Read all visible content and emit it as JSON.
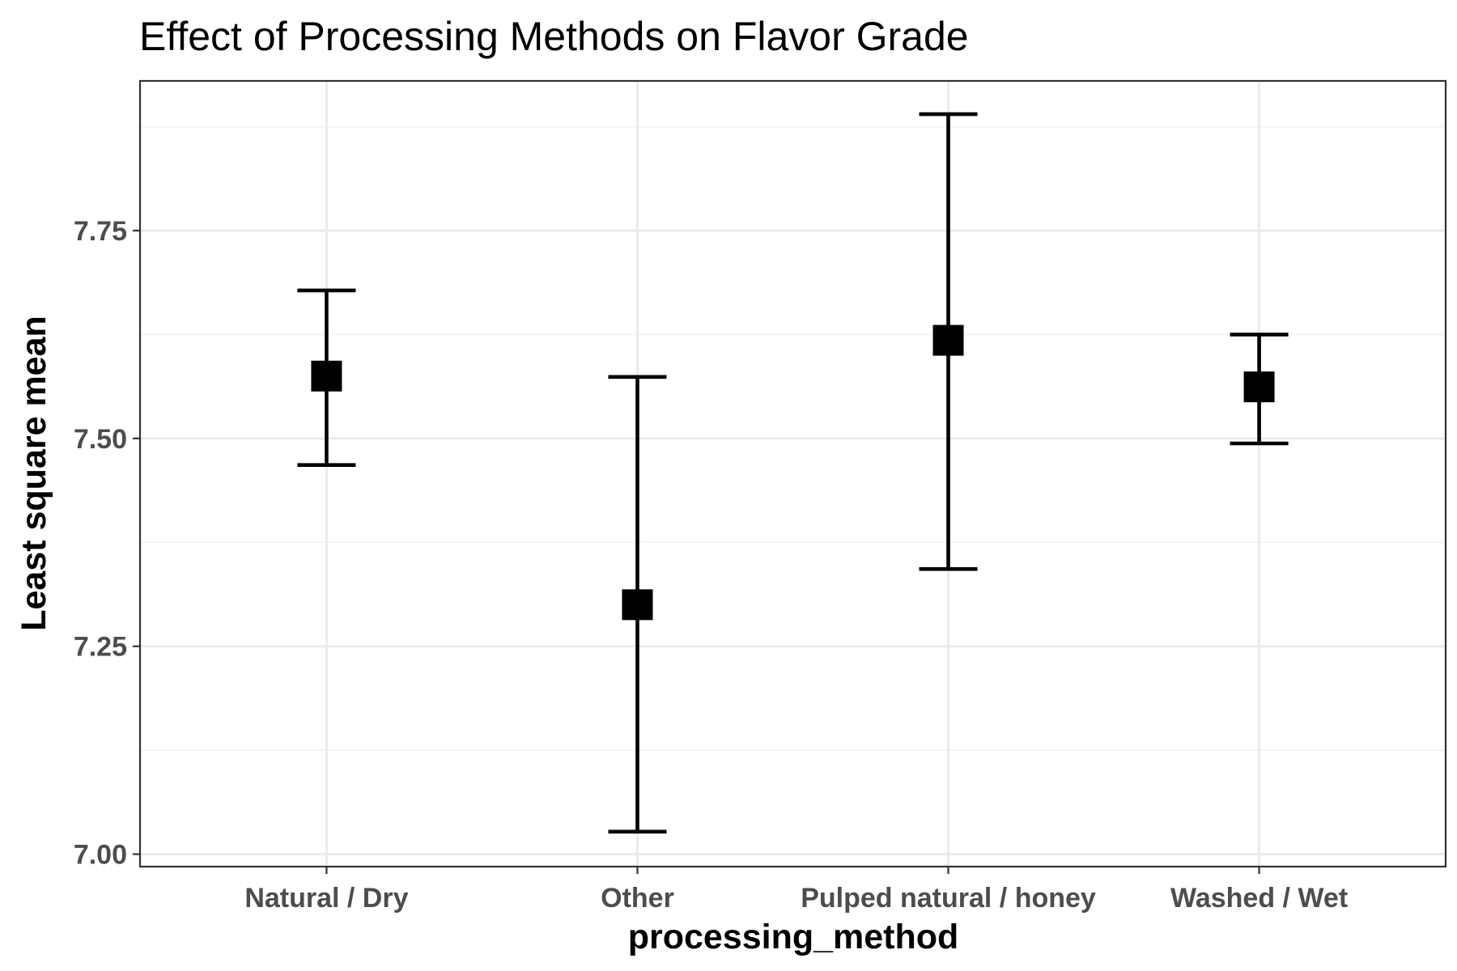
{
  "chart_data": {
    "type": "errorbar",
    "title": "Effect of Processing Methods on Flavor Grade",
    "xlabel": "processing_method",
    "ylabel": "Least square mean",
    "categories": [
      "Natural / Dry",
      "Other",
      "Pulped natural / honey",
      "Washed / Wet"
    ],
    "values": [
      7.575,
      7.3,
      7.618,
      7.562
    ],
    "lower": [
      7.468,
      7.027,
      7.343,
      7.494
    ],
    "upper": [
      7.678,
      7.574,
      7.89,
      7.625
    ],
    "ylim": [
      6.985,
      7.93
    ],
    "yticks": [
      7.0,
      7.25,
      7.5,
      7.75
    ],
    "ytick_labels": [
      "7.00",
      "7.25",
      "7.50",
      "7.75"
    ],
    "y_minor_ticks": [
      7.125,
      7.375,
      7.625,
      7.875
    ],
    "grid": true,
    "legend": "none",
    "marker": "square",
    "colors": {
      "mark": "#000000",
      "grid_major": "#ebebeb",
      "grid_minor": "#f2f2f2",
      "panel_border": "#333333",
      "tick_text": "#4d4d4d",
      "background": "#ffffff"
    }
  }
}
